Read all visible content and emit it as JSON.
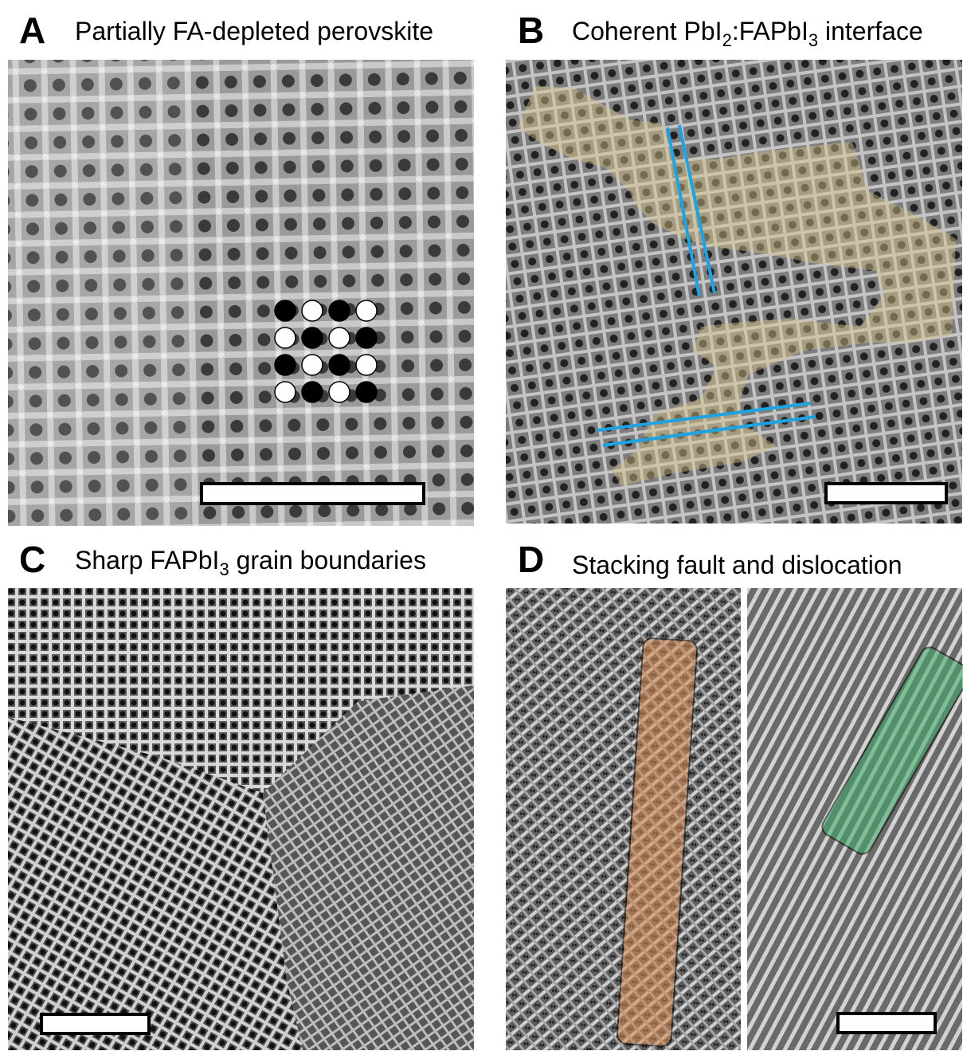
{
  "panels": [
    {
      "label": "A",
      "title": [
        "Partially FA-depleted perovskite"
      ]
    },
    {
      "label": "B",
      "title": [
        "Coherent PbI",
        "2",
        ":FAPbI",
        "3",
        " interface"
      ]
    },
    {
      "label": "C",
      "title": [
        "Sharp FAPbI",
        "3",
        " grain boundaries"
      ]
    },
    {
      "label": "D",
      "title": [
        "Stacking fault and dislocation"
      ]
    }
  ]
}
